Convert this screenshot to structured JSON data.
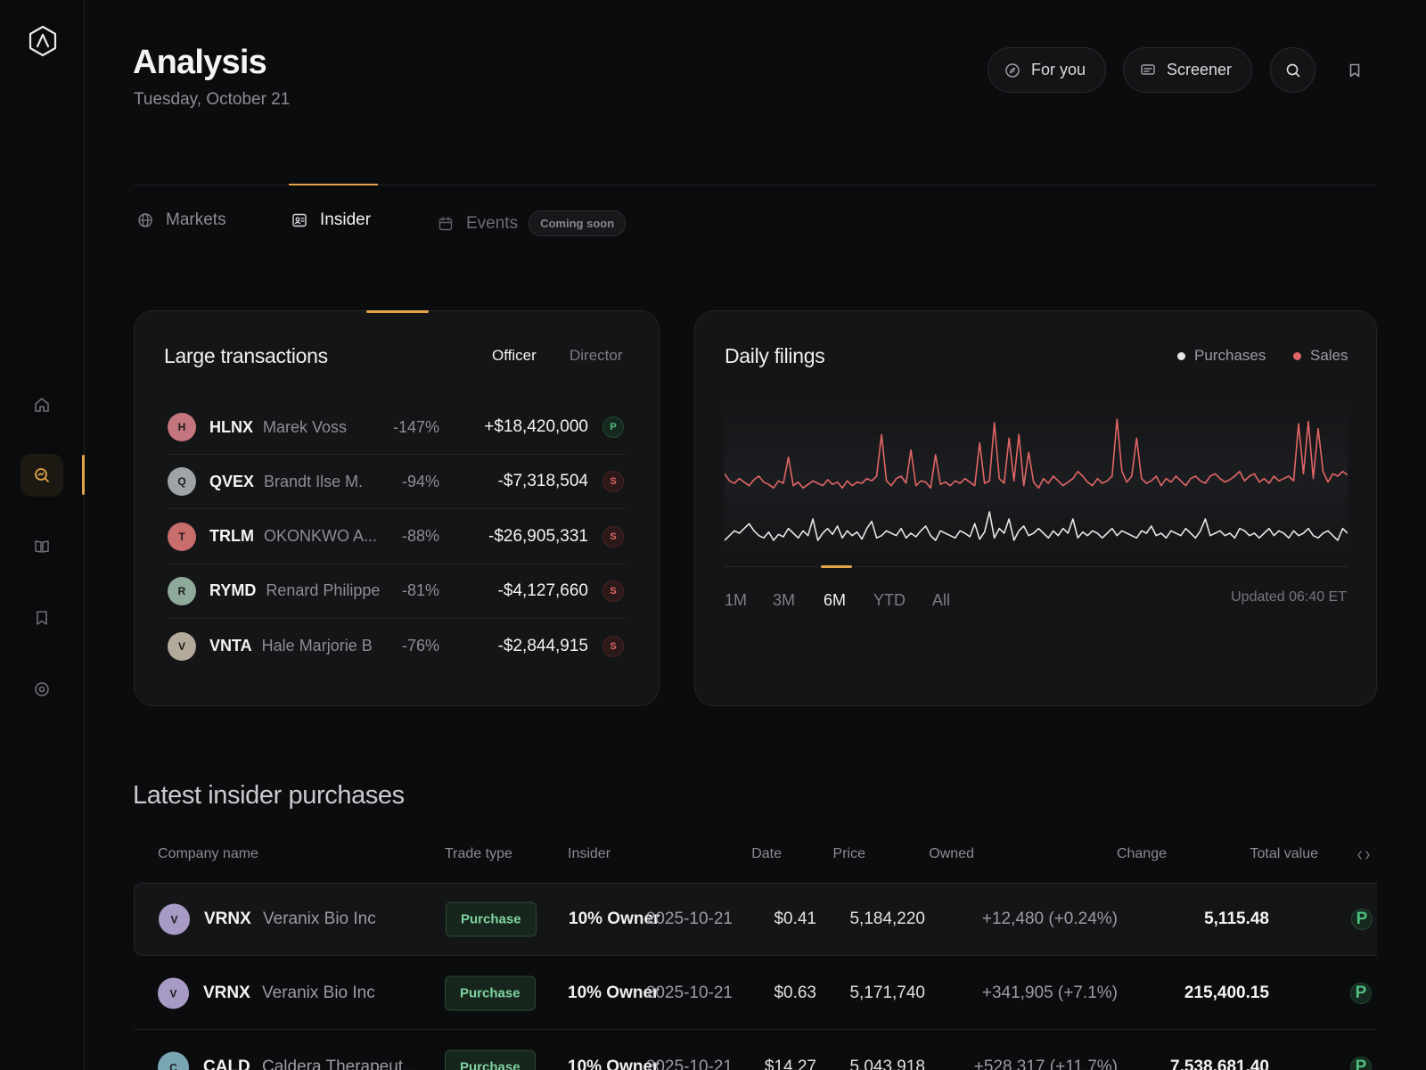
{
  "header": {
    "title": "Analysis",
    "date": "Tuesday, October 21",
    "for_you_label": "For you",
    "screener_label": "Screener"
  },
  "tabs": [
    {
      "label": "Markets"
    },
    {
      "label": "Insider"
    },
    {
      "label": "Events",
      "badge": "Coming soon"
    }
  ],
  "large_transactions": {
    "title": "Large transactions",
    "filters": [
      "Officer",
      "Director"
    ],
    "active_filter": "Officer",
    "rows": [
      {
        "initial": "H",
        "ticker": "HLNX",
        "name": "Marek Voss",
        "pct": "-147%",
        "value": "+$18,420,000",
        "badge": "P",
        "avatar_color": "#c4767e"
      },
      {
        "initial": "Q",
        "ticker": "QVEX",
        "name": "Brandt Ilse M.",
        "pct": "-94%",
        "value": "-$7,318,504",
        "badge": "S",
        "avatar_color": "#9ea3a8"
      },
      {
        "initial": "T",
        "ticker": "TRLM",
        "name": "OKONKWO A...",
        "pct": "-88%",
        "value": "-$26,905,331",
        "badge": "S",
        "avatar_color": "#c86c6c"
      },
      {
        "initial": "R",
        "ticker": "RYMD",
        "name": "Renard Philippe",
        "pct": "-81%",
        "value": "-$4,127,660",
        "badge": "S",
        "avatar_color": "#8fa99a"
      },
      {
        "initial": "V",
        "ticker": "VNTA",
        "name": "Hale Marjorie B",
        "pct": "-76%",
        "value": "-$2,844,915",
        "badge": "S",
        "avatar_color": "#b3aa9c"
      }
    ]
  },
  "daily_filings": {
    "title": "Daily filings",
    "legend": [
      {
        "label": "Purchases",
        "color": "#e6e6e6"
      },
      {
        "label": "Sales",
        "color": "#e06666"
      }
    ],
    "ranges": [
      "1M",
      "3M",
      "6M",
      "YTD",
      "All"
    ],
    "active_range": "6M",
    "updated": "Updated 06:40 ET"
  },
  "chart_data": {
    "type": "line",
    "series": [
      {
        "name": "Sales",
        "color": "#e06666",
        "values": [
          62,
          56,
          54,
          58,
          55,
          52,
          57,
          60,
          55,
          53,
          50,
          56,
          54,
          76,
          52,
          55,
          50,
          53,
          56,
          54,
          52,
          57,
          53,
          55,
          50,
          56,
          52,
          55,
          54,
          58,
          56,
          60,
          95,
          56,
          52,
          58,
          60,
          54,
          82,
          52,
          56,
          55,
          50,
          78,
          53,
          55,
          52,
          56,
          54,
          58,
          55,
          52,
          88,
          54,
          56,
          105,
          58,
          54,
          92,
          56,
          95,
          52,
          80,
          55,
          50,
          58,
          54,
          60,
          56,
          52,
          55,
          58,
          64,
          60,
          55,
          52,
          58,
          54,
          56,
          60,
          108,
          64,
          55,
          60,
          92,
          58,
          54,
          56,
          60,
          52,
          58,
          55,
          60,
          56,
          52,
          58,
          60,
          56,
          54,
          60,
          62,
          58,
          55,
          57,
          60,
          64,
          56,
          60,
          62,
          55,
          58,
          54,
          60,
          56,
          58,
          60,
          56,
          104,
          62,
          106,
          58,
          100,
          64,
          55,
          62,
          60,
          64,
          61
        ]
      },
      {
        "name": "Purchases",
        "color": "#e6e6e6",
        "values": [
          6,
          10,
          14,
          12,
          16,
          20,
          14,
          10,
          8,
          13,
          6,
          11,
          9,
          16,
          12,
          8,
          14,
          10,
          24,
          6,
          12,
          16,
          11,
          18,
          8,
          14,
          10,
          13,
          7,
          16,
          22,
          8,
          10,
          14,
          12,
          10,
          16,
          8,
          12,
          9,
          14,
          18,
          10,
          6,
          14,
          12,
          10,
          8,
          14,
          12,
          9,
          20,
          7,
          13,
          30,
          8,
          16,
          12,
          24,
          6,
          14,
          18,
          10,
          12,
          16,
          12,
          8,
          14,
          10,
          16,
          12,
          24,
          8,
          13,
          10,
          14,
          12,
          8,
          12,
          16,
          10,
          14,
          12,
          10,
          8,
          14,
          12,
          18,
          10,
          12,
          8,
          14,
          12,
          10,
          16,
          12,
          8,
          14,
          24,
          10,
          12,
          14,
          10,
          12,
          8,
          16,
          14,
          10,
          12,
          8,
          12,
          16,
          10,
          14,
          12,
          8,
          14,
          10,
          12,
          16,
          10,
          8,
          12,
          14,
          10,
          6,
          16,
          12
        ]
      }
    ]
  },
  "latest": {
    "title": "Latest insider purchases",
    "columns": [
      "Company name",
      "Trade type",
      "Insider",
      "Date",
      "Price",
      "Owned",
      "Change",
      "Total value"
    ],
    "rows": [
      {
        "initial": "V",
        "ticker": "VRNX",
        "company": "Veranix Bio Inc",
        "trade": "Purchase",
        "insider": "10% Owner",
        "date": "2025-10-21",
        "price": "$0.41",
        "owned": "5,184,220",
        "change": "+12,480 (+0.24%)",
        "total": "5,115.48",
        "badge": "P",
        "avatar_color": "#a79ac4"
      },
      {
        "initial": "V",
        "ticker": "VRNX",
        "company": "Veranix Bio Inc",
        "trade": "Purchase",
        "insider": "10% Owner",
        "date": "2025-10-21",
        "price": "$0.63",
        "owned": "5,171,740",
        "change": "+341,905 (+7.1%)",
        "total": "215,400.15",
        "badge": "P",
        "avatar_color": "#a79ac4"
      },
      {
        "initial": "C",
        "ticker": "CALD",
        "company": "Caldera Therapeut...",
        "trade": "Purchase",
        "insider": "10% Owner",
        "date": "2025-10-21",
        "price": "$14.27",
        "owned": "5,043,918",
        "change": "+528,317 (+11.7%)",
        "total": "7,538,681.40",
        "badge": "P",
        "avatar_color": "#7aa6b3"
      }
    ]
  }
}
